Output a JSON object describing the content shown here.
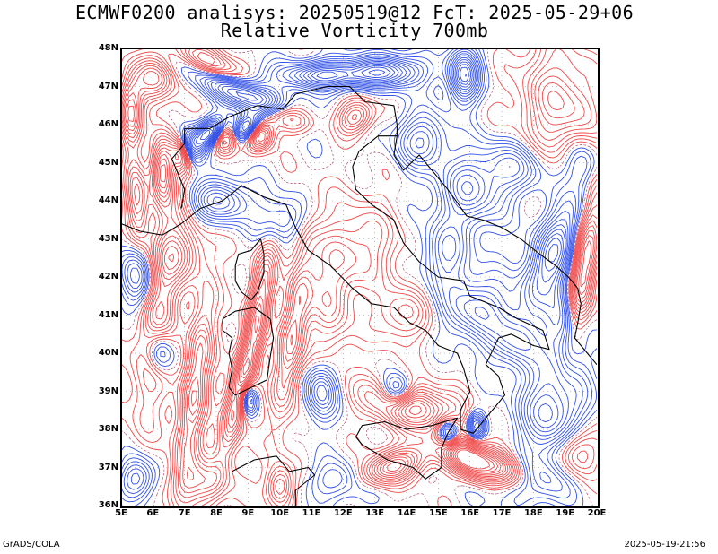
{
  "title": {
    "line1": "ECMWF0200 analisys: 20250519@12 FcT: 2025-05-29+06",
    "line2": "Relative Vorticity 700mb"
  },
  "map": {
    "field": "relative-vorticity-700mb",
    "extent": {
      "lon_min": 5,
      "lon_max": 20,
      "lat_min": 36,
      "lat_max": 48
    },
    "lat_ticks": [
      "36N",
      "37N",
      "38N",
      "39N",
      "40N",
      "41N",
      "42N",
      "43N",
      "44N",
      "45N",
      "46N",
      "47N",
      "48N"
    ],
    "lon_ticks": [
      "5E",
      "6E",
      "7E",
      "8E",
      "9E",
      "10E",
      "11E",
      "12E",
      "13E",
      "14E",
      "15E",
      "16E",
      "17E",
      "18E",
      "19E",
      "20E"
    ],
    "colors": {
      "positive_contour": "#f04848",
      "negative_contour": "#3050e8",
      "zero_dotted": "#b04870",
      "coastline": "#000000",
      "grid_dotted": "#888888"
    },
    "contour_style": "positive vorticity red, negative vorticity blue, dense contours over the Alps and south of Sardinia/Sicily"
  },
  "footer": {
    "left": "GrADS/COLA",
    "right": "2025-05-19-21:56"
  }
}
